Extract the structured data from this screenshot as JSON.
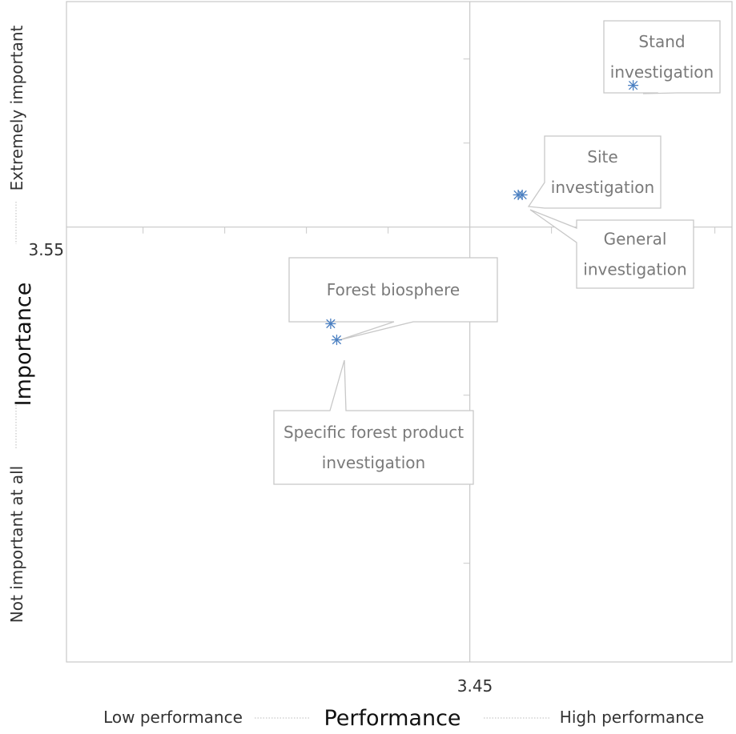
{
  "chart_data": {
    "type": "scatter",
    "title": "",
    "xlabel": "Performance",
    "ylabel": "Importance",
    "x_low_label": "Low performance",
    "x_high_label": "High performance",
    "y_low_label": "Not important at all",
    "y_high_label": "Extremely important",
    "x_reference": 3.45,
    "y_reference": 3.55,
    "x_tick_label": "3.45",
    "y_tick_label": "3.55",
    "xlim": [
      3.25,
      3.58
    ],
    "ylim": [
      3.28,
      3.69
    ],
    "grid": false,
    "marker_color": "#4a7fc1",
    "points": [
      {
        "name": "Stand investigation",
        "label_lines": [
          "Stand",
          "investigation"
        ],
        "x": 3.531,
        "y": 3.638
      },
      {
        "name": "Site investigation",
        "label_lines": [
          "Site",
          "investigation"
        ],
        "x": 3.474,
        "y": 3.57
      },
      {
        "name": "General investigation",
        "label_lines": [
          "General",
          "investigation"
        ],
        "x": 3.476,
        "y": 3.57
      },
      {
        "name": "Forest biosphere",
        "label_lines": [
          "Forest biosphere"
        ],
        "x": 3.381,
        "y": 3.49
      },
      {
        "name": "Specific forest product investigation",
        "label_lines": [
          "Specific forest product",
          "investigation"
        ],
        "x": 3.384,
        "y": 3.48
      }
    ]
  }
}
